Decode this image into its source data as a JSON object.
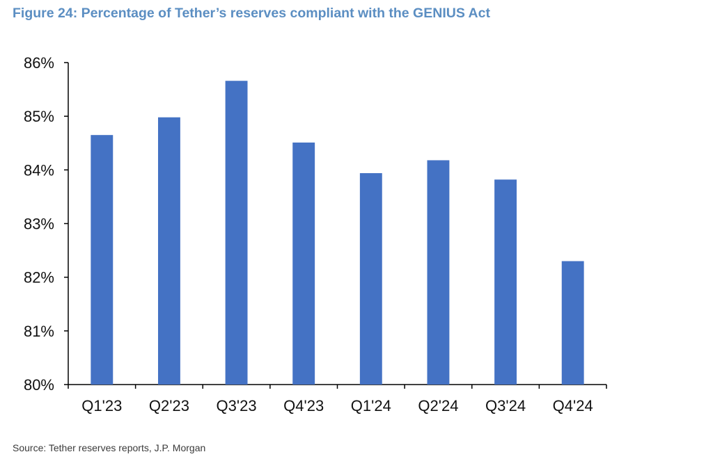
{
  "figure": {
    "title": "Figure 24: Percentage of Tether’s reserves compliant with the GENIUS Act",
    "source": "Source: Tether reserves reports, J.P. Morgan"
  },
  "colors": {
    "title": "#5b8ec2",
    "bar": "#4472c4",
    "axis": "#000000"
  },
  "chart_data": {
    "type": "bar",
    "title": "Figure 24: Percentage of Tether’s reserves compliant with the GENIUS Act",
    "xlabel": "",
    "ylabel": "",
    "categories": [
      "Q1'23",
      "Q2'23",
      "Q3'23",
      "Q4'23",
      "Q1'24",
      "Q2'24",
      "Q3'24",
      "Q4'24"
    ],
    "values": [
      84.65,
      84.98,
      85.66,
      84.51,
      83.94,
      84.18,
      83.82,
      82.3
    ],
    "ylim": [
      80,
      86
    ],
    "yticks": [
      80,
      81,
      82,
      83,
      84,
      85,
      86
    ],
    "ytick_labels": [
      "80%",
      "81%",
      "82%",
      "83%",
      "84%",
      "85%",
      "86%"
    ],
    "grid": false,
    "legend": "none"
  }
}
